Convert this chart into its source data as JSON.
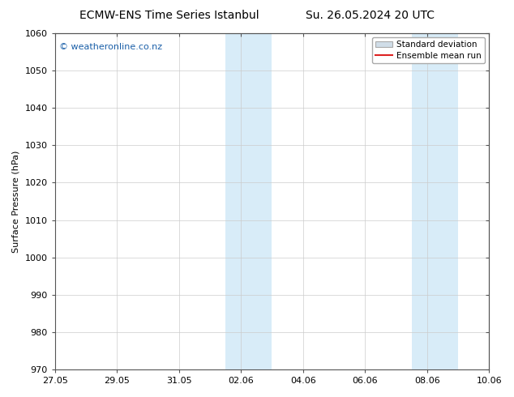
{
  "title_left": "ECMW-ENS Time Series Istanbul",
  "title_right": "Su. 26.05.2024 20 UTC",
  "ylabel": "Surface Pressure (hPa)",
  "ylim": [
    970,
    1060
  ],
  "yticks": [
    970,
    980,
    990,
    1000,
    1010,
    1020,
    1030,
    1040,
    1050,
    1060
  ],
  "xlim": [
    0,
    14
  ],
  "xtick_labels": [
    "27.05",
    "29.05",
    "31.05",
    "02.06",
    "04.06",
    "06.06",
    "08.06",
    "10.06"
  ],
  "xtick_positions_days": [
    0,
    2,
    4,
    6,
    8,
    10,
    12,
    14
  ],
  "shaded_regions": [
    {
      "start_day": 5.5,
      "end_day": 7.0
    },
    {
      "start_day": 11.5,
      "end_day": 13.0
    }
  ],
  "shaded_color": "#d8ecf8",
  "watermark_text": "© weatheronline.co.nz",
  "watermark_color": "#1a5fa8",
  "legend_std_label": "Standard deviation",
  "legend_ens_label": "Ensemble mean run",
  "legend_std_facecolor": "#d0dde8",
  "legend_std_edgecolor": "#aaaaaa",
  "legend_ens_color": "#dd2222",
  "bg_color": "#ffffff",
  "plot_bg_color": "#ffffff",
  "grid_color": "#cccccc",
  "spine_color": "#555555",
  "title_fontsize": 10,
  "ylabel_fontsize": 8,
  "tick_fontsize": 8,
  "watermark_fontsize": 8,
  "legend_fontsize": 7.5
}
